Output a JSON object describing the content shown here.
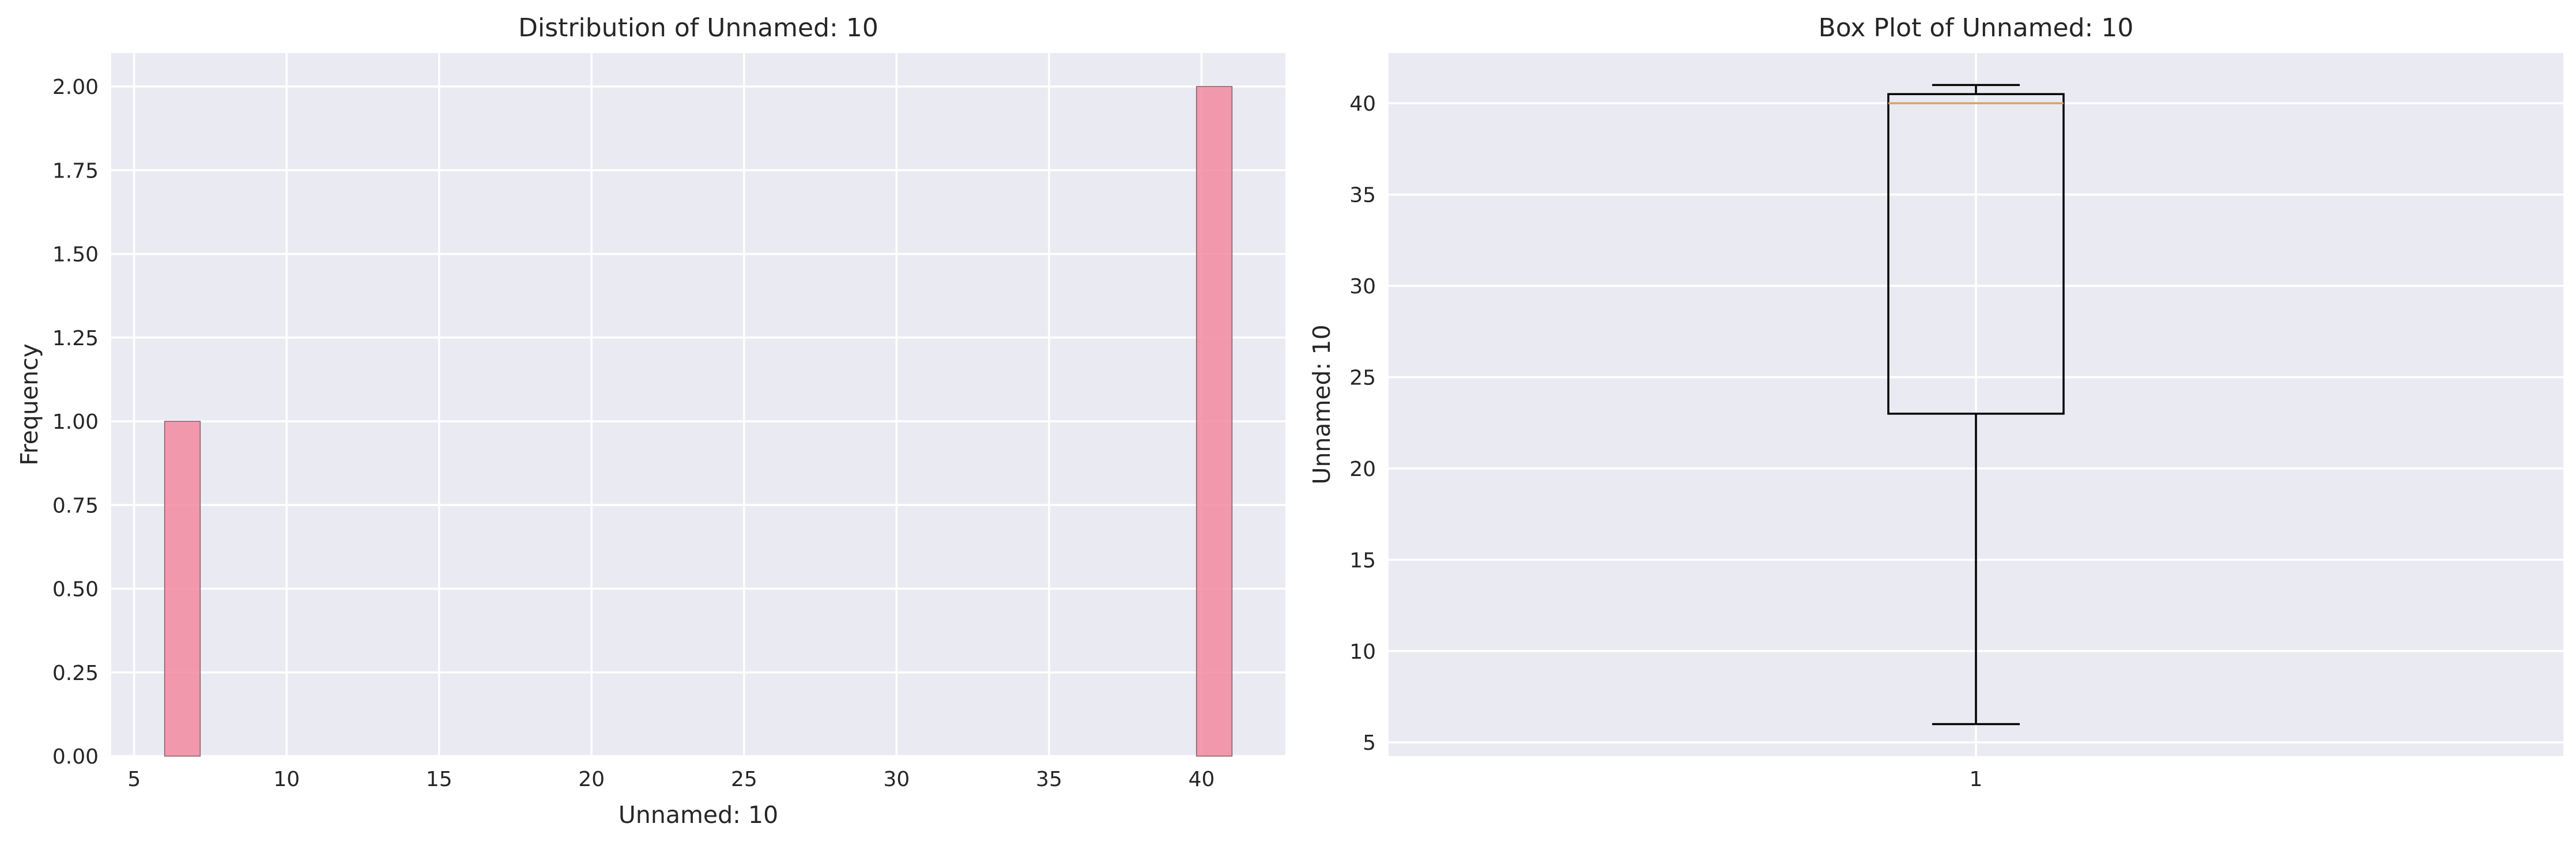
{
  "chart_data": [
    {
      "type": "bar",
      "subtype": "histogram",
      "title": "Distribution of Unnamed: 10",
      "xlabel": "Unnamed: 10",
      "ylabel": "Frequency",
      "xlim": [
        4.25,
        42.75
      ],
      "ylim": [
        0,
        2.1
      ],
      "xticks": [
        5,
        10,
        15,
        20,
        25,
        30,
        35,
        40
      ],
      "yticks": [
        0.0,
        0.25,
        0.5,
        0.75,
        1.0,
        1.25,
        1.5,
        1.75,
        2.0
      ],
      "ytick_labels": [
        "0.00",
        "0.25",
        "0.50",
        "0.75",
        "1.00",
        "1.25",
        "1.50",
        "1.75",
        "2.00"
      ],
      "bins": [
        {
          "x0": 6.0,
          "x1": 7.1667,
          "count": 1
        },
        {
          "x0": 39.8333,
          "x1": 41.0,
          "count": 2
        }
      ],
      "bar_color": "#f28aa0",
      "bar_edge_color": "#8a5a66",
      "grid": true
    },
    {
      "type": "box",
      "title": "Box Plot of Unnamed: 10",
      "xlabel": "",
      "ylabel": "Unnamed: 10",
      "ylim": [
        4.25,
        42.75
      ],
      "yticks": [
        5,
        10,
        15,
        20,
        25,
        30,
        35,
        40
      ],
      "xtick_labels": [
        "1"
      ],
      "box": {
        "min": 6,
        "q1": 23,
        "median": 40,
        "q3": 40.5,
        "max": 41
      },
      "median_color": "#e0a05a",
      "grid": true
    }
  ]
}
